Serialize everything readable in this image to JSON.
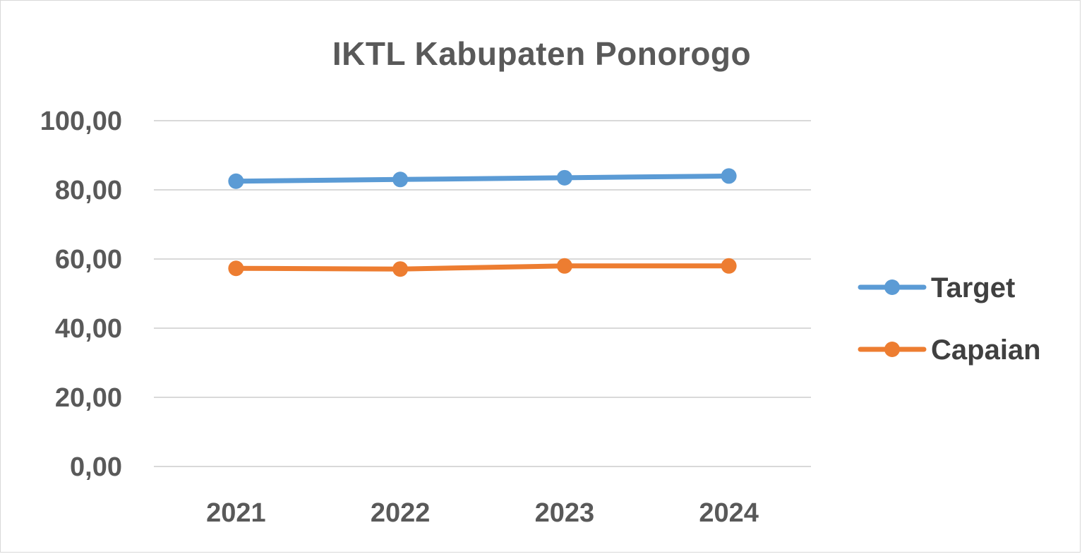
{
  "chart_data": {
    "type": "line",
    "title": "IKTL Kabupaten Ponorogo",
    "categories": [
      "2021",
      "2022",
      "2023",
      "2024"
    ],
    "y_tick_labels": [
      "0,00",
      "20,00",
      "40,00",
      "60,00",
      "80,00",
      "100,00"
    ],
    "ylim": [
      0,
      100
    ],
    "grid": true,
    "legend_position": "right",
    "series": [
      {
        "name": "Target",
        "color": "#5b9bd5",
        "values": [
          82.5,
          83.0,
          83.5,
          84.0
        ]
      },
      {
        "name": "Capaian",
        "color": "#ed7d31",
        "values": [
          57.3,
          57.1,
          58.0,
          58.0
        ]
      }
    ]
  }
}
